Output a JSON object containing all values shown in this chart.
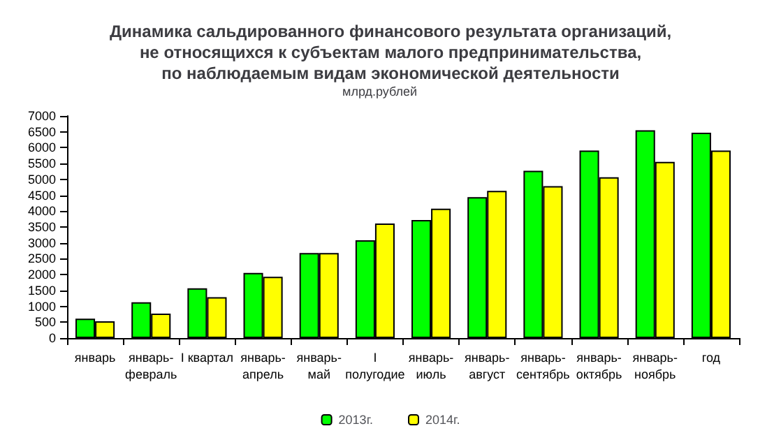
{
  "chart_data": {
    "type": "bar",
    "title": "Динамика сальдированного финансового результата организаций,\nне относящихся к субъектам малого предпринимательства,\nпо наблюдаемым видам экономической деятельности",
    "subtitle": "млрд.рублей",
    "categories": [
      "январь",
      "январь-\nфевраль",
      "I квартал",
      "январь-\nапрель",
      "январь-\nмай",
      "I\nполугодие",
      "январь-\nиюль",
      "январь-\nавгуст",
      "январь-\nсентябрь",
      "январь-\nоктябрь",
      "январь-\nноябрь",
      "год"
    ],
    "series": [
      {
        "name": "2013г.",
        "color": "#00ff00",
        "values": [
          610,
          1130,
          1570,
          2050,
          2680,
          3080,
          3720,
          4440,
          5270,
          5910,
          6550,
          6470
        ]
      },
      {
        "name": "2014г.",
        "color": "#ffff00",
        "values": [
          530,
          770,
          1290,
          1930,
          2680,
          3610,
          4080,
          4640,
          4790,
          5070,
          5550,
          5910
        ]
      }
    ],
    "ylim": [
      0,
      7000
    ],
    "yticks": [
      0,
      500,
      1000,
      1500,
      2000,
      2500,
      3000,
      3500,
      4000,
      4500,
      5000,
      5500,
      6000,
      6500,
      7000
    ],
    "grid": false,
    "legend": "bottom"
  }
}
